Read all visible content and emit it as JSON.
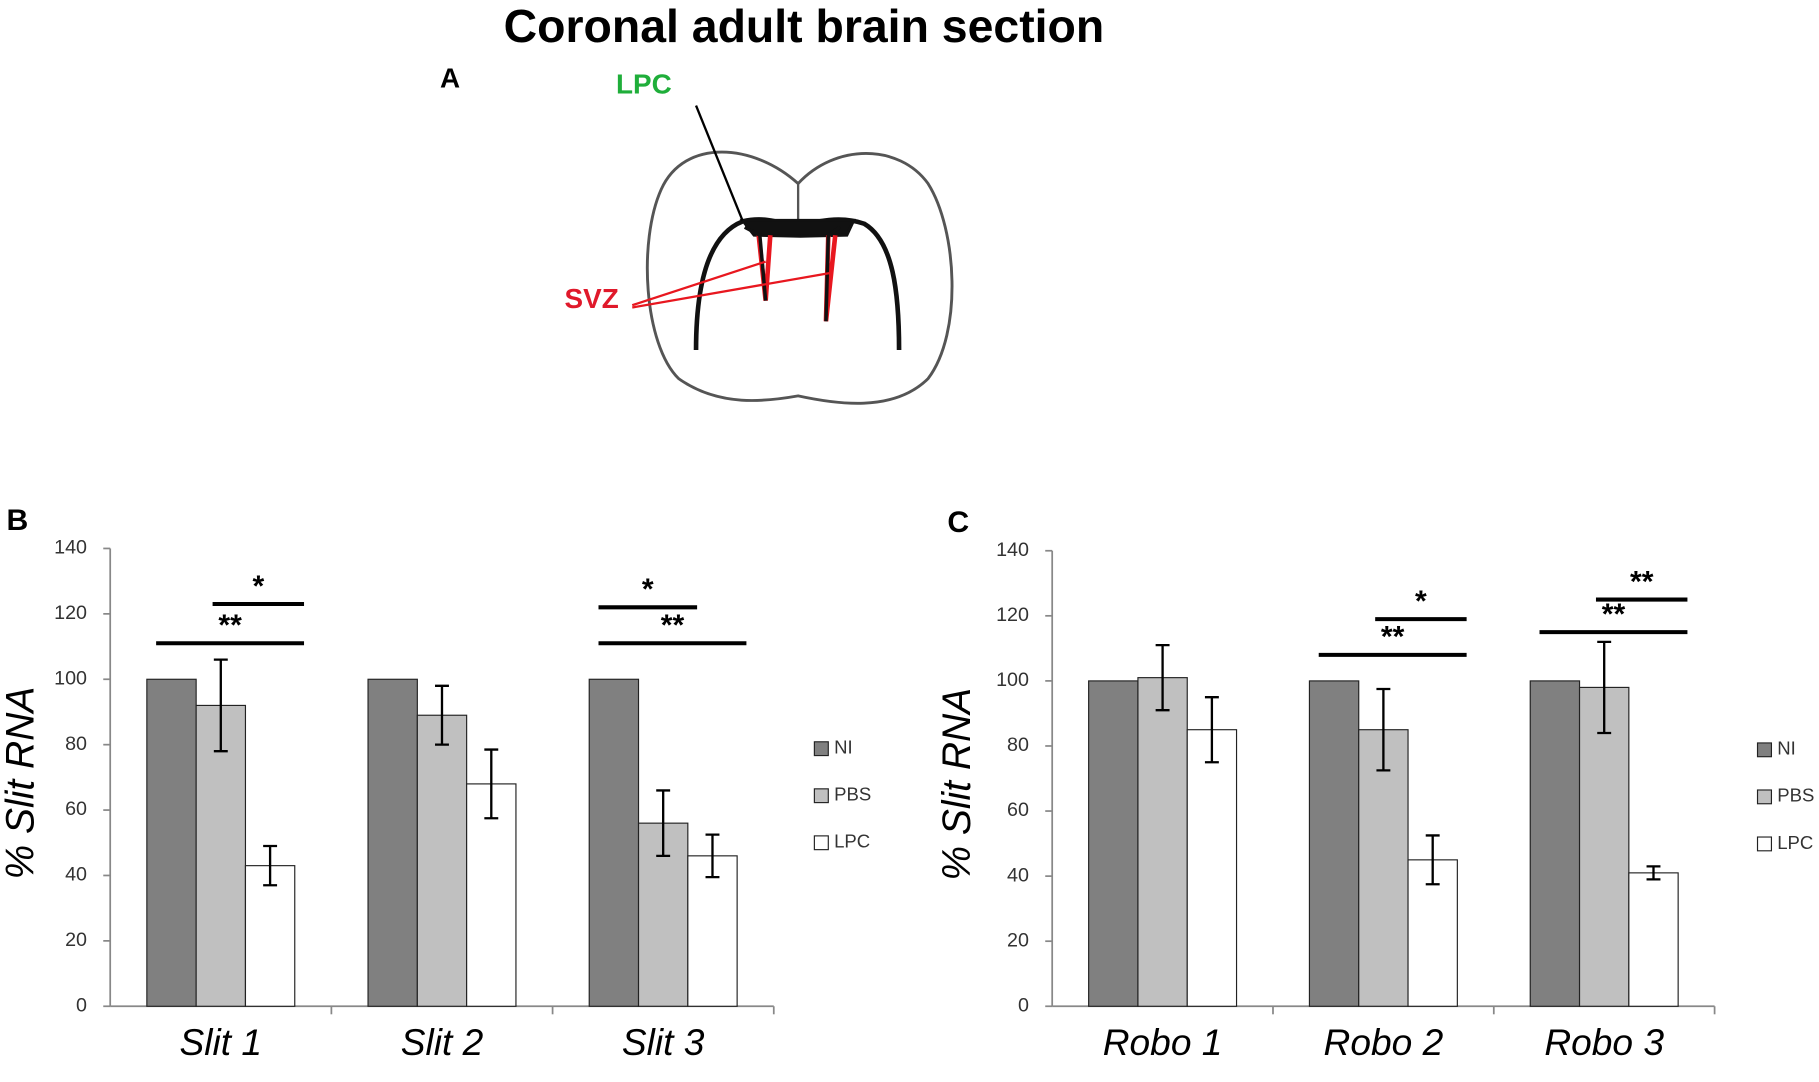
{
  "figure": {
    "title": "Coronal adult brain section",
    "panel_label": "A",
    "lpc_label": "LPC",
    "svz_label": "SVZ"
  },
  "chart_data": [
    {
      "type": "bar",
      "panel_label": "B",
      "ylabel": "% Slit RNA",
      "categories": [
        "Slit 1",
        "Slit 2",
        "Slit 3"
      ],
      "series": [
        {
          "name": "NI",
          "color": "#808080",
          "values": [
            100,
            100,
            100
          ]
        },
        {
          "name": "PBS",
          "color": "#c0c0c0",
          "values": [
            92,
            89,
            56
          ],
          "errors": [
            14,
            9,
            10
          ]
        },
        {
          "name": "LPC",
          "color": "#ffffff",
          "values": [
            43,
            68,
            46
          ],
          "errors": [
            6,
            10.5,
            6.5
          ]
        }
      ],
      "ylim": [
        0,
        140
      ],
      "yticks": [
        0,
        20,
        40,
        60,
        80,
        100,
        120,
        140
      ],
      "significance": [
        {
          "label": "*",
          "y": 123,
          "category": 0,
          "from": 1,
          "to": 2
        },
        {
          "label": "**",
          "y": 111,
          "category": 0,
          "from": 0,
          "to": 2
        },
        {
          "label": "*",
          "y": 122,
          "category": 2,
          "from": 0,
          "to": 1
        },
        {
          "label": "**",
          "y": 111,
          "category": 2,
          "from": 0,
          "to": 2
        }
      ]
    },
    {
      "type": "bar",
      "panel_label": "C",
      "ylabel": "% Slit RNA",
      "categories": [
        "Robo 1",
        "Robo 2",
        "Robo 3"
      ],
      "series": [
        {
          "name": "NI",
          "color": "#808080",
          "values": [
            100,
            100,
            100
          ]
        },
        {
          "name": "PBS",
          "color": "#c0c0c0",
          "values": [
            101,
            85,
            98
          ],
          "errors": [
            10,
            12.5,
            14
          ]
        },
        {
          "name": "LPC",
          "color": "#ffffff",
          "values": [
            85,
            45,
            41
          ],
          "errors": [
            10,
            7.5,
            2
          ]
        }
      ],
      "ylim": [
        0,
        140
      ],
      "yticks": [
        0,
        20,
        40,
        60,
        80,
        100,
        120,
        140
      ],
      "significance": [
        {
          "label": "*",
          "y": 119,
          "category": 1,
          "from": 1,
          "to": 2
        },
        {
          "label": "**",
          "y": 108,
          "category": 1,
          "from": 0,
          "to": 2
        },
        {
          "label": "**",
          "y": 125,
          "category": 2,
          "from": 1,
          "to": 2
        },
        {
          "label": "**",
          "y": 115,
          "category": 2,
          "from": 0,
          "to": 2
        }
      ]
    }
  ]
}
